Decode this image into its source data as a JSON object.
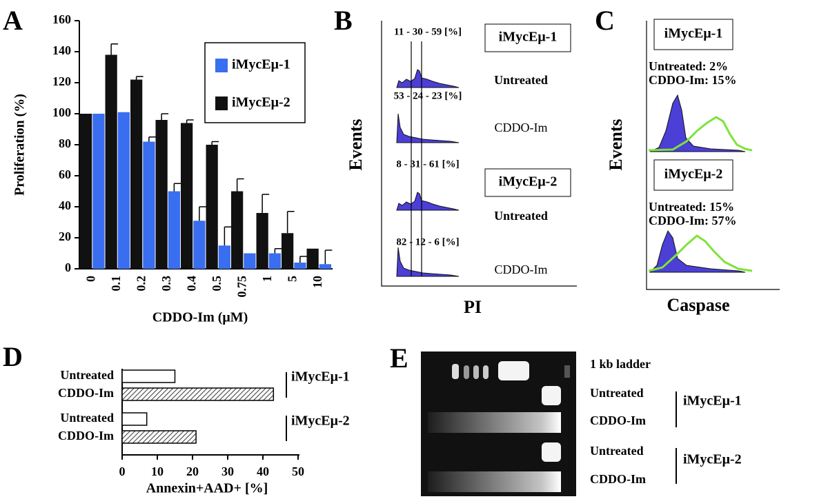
{
  "chart_data": [
    {
      "type": "bar",
      "label": "A",
      "ylabel": "Proliferation (%)",
      "xlabel": "CDDO-Im (μM)",
      "categories": [
        "0",
        "0.1",
        "0.2",
        "0.3",
        "0.4",
        "0.5",
        "0.75",
        "1",
        "5",
        "10"
      ],
      "series": [
        {
          "name": "iMycEμ-1",
          "color": "#3a6ef0",
          "values": [
            100,
            101,
            82,
            50,
            31,
            15,
            10,
            10,
            4,
            3
          ],
          "errors": [
            null,
            null,
            3,
            5,
            9,
            12,
            null,
            3,
            4,
            9
          ]
        },
        {
          "name": "iMycEμ-2",
          "color": "#111111",
          "values": [
            100,
            138,
            122,
            96,
            94,
            80,
            50,
            36,
            23,
            13
          ],
          "errors": [
            null,
            7,
            2,
            4,
            2,
            2,
            8,
            12,
            14,
            null
          ]
        }
      ],
      "ylim": [
        0,
        160
      ],
      "yticks": [
        0,
        20,
        40,
        60,
        80,
        100,
        120,
        140,
        160
      ],
      "legend": "upper right"
    },
    {
      "type": "barh",
      "label": "D",
      "xlabel": "Annexin+AAD+ [%]",
      "categories": [
        "Untreated",
        "CDDO-Im",
        "Untreated",
        "CDDO-Im"
      ],
      "values": [
        15,
        43,
        7,
        21
      ],
      "fills": [
        "white",
        "hatched",
        "white",
        "hatched"
      ],
      "groups": [
        "iMycEμ-1",
        "iMycEμ-2"
      ],
      "xlim": [
        0,
        50
      ],
      "xticks": [
        0,
        10,
        20,
        30,
        40,
        50
      ]
    }
  ],
  "panel_b": {
    "label": "B",
    "ylabel": "Events",
    "xlabel": "PI",
    "gates": [
      "11 - 30 - 59 [%]",
      "53 - 24 - 23 [%]",
      "8 - 31 - 61 [%]",
      "82 - 12 - 6 [%]"
    ],
    "boxes": [
      "iMycEμ-1",
      "iMycEμ-2"
    ],
    "treatments": [
      "Untreated",
      "CDDO-Im",
      "Untreated",
      "CDDO-Im"
    ]
  },
  "panel_c": {
    "label": "C",
    "ylabel": "Events",
    "xlabel": "Caspase",
    "boxes": [
      "iMycEμ-1",
      "iMycEμ-2"
    ],
    "stats": [
      "Untreated: 2%",
      "CDDO-Im: 15%",
      "Untreated: 15%",
      "CDDO-Im: 57%"
    ]
  },
  "panel_e": {
    "label": "E",
    "ladder": "1 kb ladder",
    "lanes": [
      "Untreated",
      "CDDO-Im",
      "Untreated",
      "CDDO-Im"
    ],
    "groups": [
      "iMycEμ-1",
      "iMycEμ-2"
    ]
  }
}
